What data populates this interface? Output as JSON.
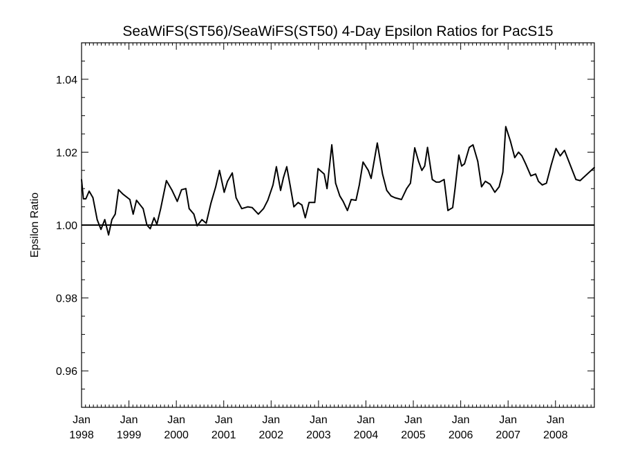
{
  "chart_data": {
    "type": "line",
    "title": "SeaWiFS(ST56)/SeaWiFS(ST50) 4-Day Epsilon Ratios for PacS15",
    "xlabel": "",
    "ylabel": "Epsilon Ratio",
    "xlim": [
      1998.0,
      2008.82
    ],
    "ylim": [
      0.95,
      1.05
    ],
    "y_ticks": [
      0.96,
      0.98,
      1.0,
      1.02,
      1.04
    ],
    "y_tick_labels": [
      "0.96",
      "0.98",
      "1.00",
      "1.02",
      "1.04"
    ],
    "x_ticks": [
      {
        "value": 1998,
        "month": "Jan",
        "year": "1998"
      },
      {
        "value": 1999,
        "month": "Jan",
        "year": "1999"
      },
      {
        "value": 2000,
        "month": "Jan",
        "year": "2000"
      },
      {
        "value": 2001,
        "month": "Jan",
        "year": "2001"
      },
      {
        "value": 2002,
        "month": "Jan",
        "year": "2002"
      },
      {
        "value": 2003,
        "month": "Jan",
        "year": "2003"
      },
      {
        "value": 2004,
        "month": "Jan",
        "year": "2004"
      },
      {
        "value": 2005,
        "month": "Jan",
        "year": "2005"
      },
      {
        "value": 2006,
        "month": "Jan",
        "year": "2006"
      },
      {
        "value": 2007,
        "month": "Jan",
        "year": "2007"
      },
      {
        "value": 2008,
        "month": "Jan",
        "year": "2008"
      }
    ],
    "reference_line": {
      "y": 1.0
    },
    "grid": false,
    "series": [
      {
        "color": "#000000",
        "x": [
          1997.97,
          1998.04,
          1998.09,
          1998.16,
          1998.24,
          1998.33,
          1998.41,
          1998.49,
          1998.57,
          1998.64,
          1998.71,
          1998.78,
          1998.87,
          1999.02,
          1999.09,
          1999.16,
          1999.3,
          1999.38,
          1999.45,
          1999.53,
          1999.59,
          1999.67,
          1999.79,
          1999.91,
          2000.02,
          2000.11,
          2000.2,
          2000.27,
          2000.37,
          2000.44,
          2000.54,
          2000.63,
          2000.73,
          2000.83,
          2000.91,
          2001.01,
          2001.08,
          2001.18,
          2001.26,
          2001.38,
          2001.51,
          2001.6,
          2001.73,
          2001.84,
          2001.93,
          2002.04,
          2002.11,
          2002.2,
          2002.26,
          2002.33,
          2002.4,
          2002.48,
          2002.57,
          2002.65,
          2002.72,
          2002.8,
          2002.92,
          2002.99,
          2003.12,
          2003.18,
          2003.28,
          2003.36,
          2003.45,
          2003.52,
          2003.61,
          2003.69,
          2003.79,
          2003.86,
          2003.94,
          2004.05,
          2004.11,
          2004.24,
          2004.35,
          2004.44,
          2004.53,
          2004.61,
          2004.75,
          2004.86,
          2004.94,
          2005.03,
          2005.11,
          2005.18,
          2005.24,
          2005.3,
          2005.4,
          2005.48,
          2005.55,
          2005.65,
          2005.73,
          2005.83,
          2005.88,
          2005.96,
          2006.02,
          2006.08,
          2006.18,
          2006.26,
          2006.36,
          2006.44,
          2006.52,
          2006.62,
          2006.72,
          2006.81,
          2006.89,
          2006.95,
          2007.05,
          2007.14,
          2007.22,
          2007.29,
          2007.37,
          2007.48,
          2007.58,
          2007.64,
          2007.72,
          2007.81,
          2007.91,
          2008.01,
          2008.1,
          2008.19,
          2008.28,
          2008.43,
          2008.52,
          2008.82
        ],
        "values": [
          1.0125,
          1.0072,
          1.0072,
          1.0093,
          1.0075,
          1.0015,
          0.9988,
          1.0015,
          0.9973,
          1.0015,
          1.003,
          1.0097,
          1.0085,
          1.007,
          1.003,
          1.0068,
          1.0045,
          1.0,
          0.999,
          1.002,
          1.0002,
          1.0045,
          1.0122,
          1.0095,
          1.0065,
          1.0097,
          1.01,
          1.0045,
          1.003,
          0.9998,
          1.0015,
          1.0005,
          1.006,
          1.0105,
          1.015,
          1.009,
          1.012,
          1.0143,
          1.0075,
          1.0045,
          1.005,
          1.0048,
          1.003,
          1.0045,
          1.0068,
          1.011,
          1.016,
          1.0095,
          1.013,
          1.016,
          1.011,
          1.005,
          1.0062,
          1.0055,
          1.002,
          1.0062,
          1.0062,
          1.0155,
          1.014,
          1.01,
          1.022,
          1.0115,
          1.008,
          1.0065,
          1.004,
          1.007,
          1.0068,
          1.011,
          1.0173,
          1.015,
          1.0128,
          1.0225,
          1.014,
          1.0095,
          1.008,
          1.0075,
          1.007,
          1.01,
          1.0115,
          1.0212,
          1.0175,
          1.015,
          1.0162,
          1.0213,
          1.0125,
          1.0118,
          1.0118,
          1.0125,
          1.004,
          1.0048,
          1.01,
          1.0192,
          1.0162,
          1.0168,
          1.0213,
          1.022,
          1.0175,
          1.0105,
          1.012,
          1.0112,
          1.009,
          1.0105,
          1.0145,
          1.027,
          1.023,
          1.0185,
          1.02,
          1.019,
          1.0168,
          1.0135,
          1.014,
          1.012,
          1.011,
          1.0115,
          1.0165,
          1.021,
          1.019,
          1.0205,
          1.0175,
          1.0125,
          1.0122,
          1.0158
        ]
      }
    ]
  }
}
